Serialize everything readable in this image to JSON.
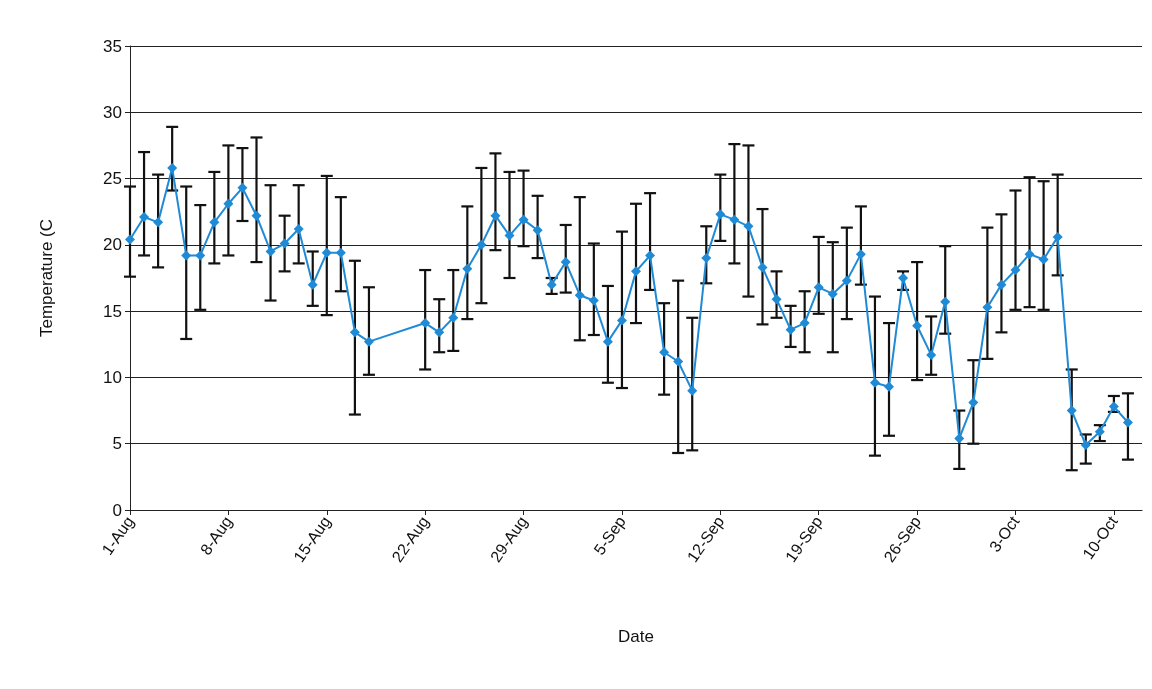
{
  "chart_data": {
    "type": "line",
    "xlabel": "Date",
    "ylabel": "Temperature (C",
    "x": [
      "--08-01",
      "--08-02",
      "--08-03",
      "--08-04",
      "--08-05",
      "--08-06",
      "--08-07",
      "--08-08",
      "--08-09",
      "--08-10",
      "--08-11",
      "--08-12",
      "--08-13",
      "--08-14",
      "--08-15",
      "--08-16",
      "--08-17",
      "--08-18",
      "--08-22",
      "--08-23",
      "--08-24",
      "--08-25",
      "--08-26",
      "--08-27",
      "--08-28",
      "--08-29",
      "--08-30",
      "--08-31",
      "--09-01",
      "--09-02",
      "--09-03",
      "--09-04",
      "--09-05",
      "--09-06",
      "--09-07",
      "--09-08",
      "--09-09",
      "--09-10",
      "--09-11",
      "--09-12",
      "--09-13",
      "--09-14",
      "--09-15",
      "--09-16",
      "--09-17",
      "--09-18",
      "--09-19",
      "--09-20",
      "--09-21",
      "--09-22",
      "--09-23",
      "--09-24",
      "--09-25",
      "--09-26",
      "--09-27",
      "--09-28",
      "--09-29",
      "--09-30",
      "--10-01",
      "--10-02",
      "--10-03",
      "--10-04",
      "--10-05",
      "--10-06",
      "--10-07",
      "--10-08",
      "--10-09",
      "--10-10",
      "--10-11"
    ],
    "series": [
      {
        "color": "#1f8ad6",
        "values": [
          20.4,
          22.1,
          21.7,
          25.8,
          19.2,
          19.2,
          21.7,
          23.1,
          24.3,
          22.2,
          19.5,
          20.1,
          21.2,
          17.0,
          19.4,
          19.4,
          13.4,
          12.7,
          14.1,
          13.4,
          14.5,
          18.2,
          20.0,
          22.2,
          20.7,
          21.9,
          21.1,
          17.0,
          18.7,
          16.2,
          15.8,
          12.7,
          14.3,
          18.0,
          19.2,
          11.9,
          11.2,
          9.0,
          19.0,
          22.3,
          21.9,
          21.4,
          18.3,
          15.9,
          13.6,
          14.1,
          16.8,
          16.3,
          17.3,
          19.3,
          9.6,
          9.3,
          17.5,
          13.9,
          11.7,
          15.7,
          5.4,
          8.1,
          15.3,
          17.0,
          18.1,
          19.3,
          18.9,
          20.6,
          7.5,
          4.9,
          5.9,
          7.8,
          6.6
        ],
        "errors": [
          [
            17.6,
            24.4
          ],
          [
            19.2,
            27.0
          ],
          [
            18.3,
            25.3
          ],
          [
            24.1,
            28.9
          ],
          [
            12.9,
            24.4
          ],
          [
            15.1,
            23.0
          ],
          [
            18.6,
            25.5
          ],
          [
            19.2,
            27.5
          ],
          [
            21.8,
            27.3
          ],
          [
            18.7,
            28.1
          ],
          [
            15.8,
            24.5
          ],
          [
            18.0,
            22.2
          ],
          [
            18.6,
            24.5
          ],
          [
            15.4,
            19.5
          ],
          [
            14.7,
            25.2
          ],
          [
            16.5,
            23.6
          ],
          [
            7.2,
            18.8
          ],
          [
            10.2,
            16.8
          ],
          [
            10.6,
            18.1
          ],
          [
            11.9,
            15.9
          ],
          [
            12.0,
            18.1
          ],
          [
            14.4,
            22.9
          ],
          [
            15.6,
            25.8
          ],
          [
            19.6,
            26.9
          ],
          [
            17.5,
            25.5
          ],
          [
            19.9,
            25.6
          ],
          [
            19.0,
            23.7
          ],
          [
            16.3,
            17.5
          ],
          [
            16.4,
            21.5
          ],
          [
            12.8,
            23.6
          ],
          [
            13.2,
            20.1
          ],
          [
            9.6,
            16.9
          ],
          [
            9.2,
            21.0
          ],
          [
            14.1,
            23.1
          ],
          [
            16.6,
            23.9
          ],
          [
            8.7,
            15.6
          ],
          [
            4.3,
            17.3
          ],
          [
            4.5,
            14.5
          ],
          [
            17.1,
            21.4
          ],
          [
            20.3,
            25.3
          ],
          [
            18.6,
            27.6
          ],
          [
            16.1,
            27.5
          ],
          [
            14.0,
            22.7
          ],
          [
            14.5,
            18.0
          ],
          [
            12.3,
            15.4
          ],
          [
            11.9,
            16.5
          ],
          [
            14.8,
            20.6
          ],
          [
            11.9,
            20.2
          ],
          [
            14.4,
            21.3
          ],
          [
            17.0,
            22.9
          ],
          [
            4.1,
            16.1
          ],
          [
            5.6,
            14.1
          ],
          [
            16.6,
            18.0
          ],
          [
            9.8,
            18.7
          ],
          [
            10.2,
            14.6
          ],
          [
            13.3,
            19.9
          ],
          [
            3.1,
            7.5
          ],
          [
            5.0,
            11.3
          ],
          [
            11.4,
            21.3
          ],
          [
            13.4,
            22.3
          ],
          [
            15.1,
            24.1
          ],
          [
            15.3,
            25.1
          ],
          [
            15.1,
            24.8
          ],
          [
            17.7,
            25.3
          ],
          [
            3.0,
            10.6
          ],
          [
            3.5,
            5.7
          ],
          [
            5.2,
            6.4
          ],
          [
            7.4,
            8.6
          ],
          [
            3.8,
            8.8
          ]
        ]
      }
    ],
    "xlim": [
      "--08-01",
      "--10-12"
    ],
    "xticks": [
      {
        "value": "--08-01",
        "label": "1-Aug"
      },
      {
        "value": "--08-08",
        "label": "8-Aug"
      },
      {
        "value": "--08-15",
        "label": "15-Aug"
      },
      {
        "value": "--08-22",
        "label": "22-Aug"
      },
      {
        "value": "--08-29",
        "label": "29-Aug"
      },
      {
        "value": "--09-05",
        "label": "5-Sep"
      },
      {
        "value": "--09-12",
        "label": "12-Sep"
      },
      {
        "value": "--09-19",
        "label": "19-Sep"
      },
      {
        "value": "--09-26",
        "label": "26-Sep"
      },
      {
        "value": "--10-03",
        "label": "3-Oct"
      },
      {
        "value": "--10-10",
        "label": "10-Oct"
      }
    ],
    "ylim": [
      0,
      35
    ],
    "yticks": [
      0,
      5,
      10,
      15,
      20,
      25,
      30,
      35
    ],
    "grid": "y",
    "marker": "diamond",
    "line_style": "solid"
  }
}
